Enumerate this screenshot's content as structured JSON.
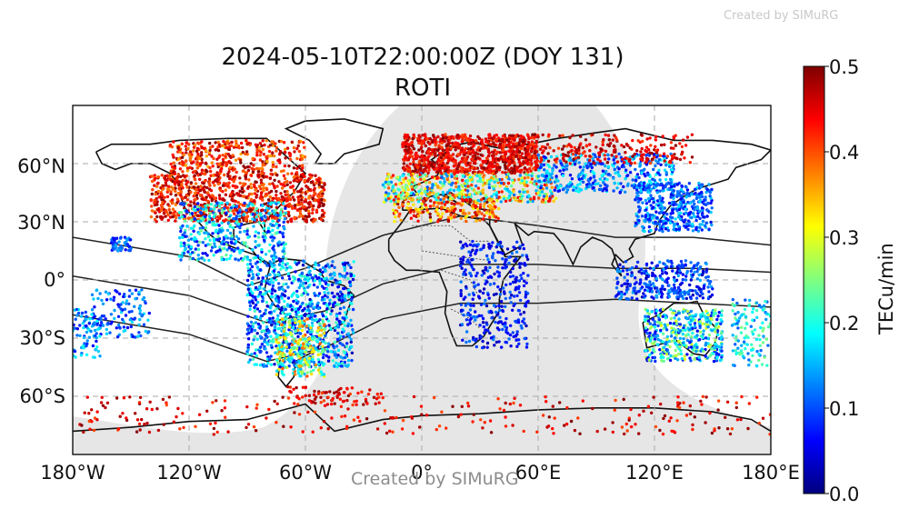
{
  "map": {
    "title": "2024-05-10T22:00:00Z (DOY 131)",
    "subtitle": "ROTI",
    "watermark_top": "Created by SIMuRG",
    "watermark_bottom": "Created by SIMuRG",
    "lat_ticks": [
      "60°N",
      "30°N",
      "0°",
      "30°S",
      "60°S"
    ],
    "lon_ticks": [
      "180°W",
      "120°W",
      "60°W",
      "0°",
      "60°E",
      "120°E",
      "180°E"
    ],
    "colorbar": {
      "label": "TECu/min",
      "ticks": [
        "0.5",
        "0.4",
        "0.3",
        "0.2",
        "0.1",
        "0.0"
      ],
      "range": [
        0.0,
        0.5
      ],
      "colormap": "jet"
    },
    "lon_range": [
      -180,
      180
    ],
    "lat_range": [
      -90,
      90
    ],
    "grid": true,
    "night_shading_color": "#e6e6e6"
  }
}
